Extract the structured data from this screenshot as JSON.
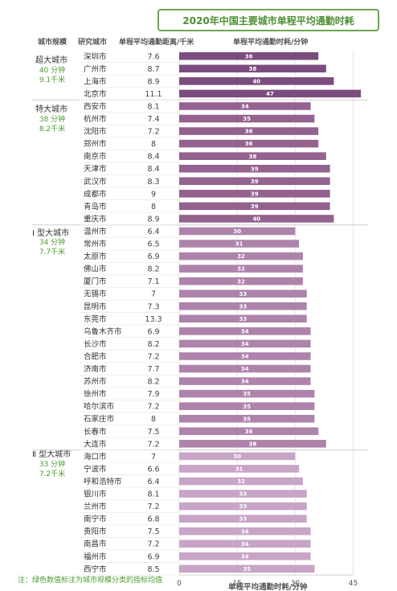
{
  "title": "2020年中国主要城市单程平均通勤时耗",
  "headers": {
    "tier": "城市规模",
    "city": "研究城市",
    "distance": "单程平均通勤距离/千米",
    "time": "单程平均通勤时耗/分钟"
  },
  "tiers": [
    {
      "name": "超大城市",
      "stat1": "40 分钟",
      "stat2": "9.1千米"
    },
    {
      "name": "特大城市",
      "stat1": "38 分钟",
      "stat2": "8.2千米"
    },
    {
      "name": "Ⅰ 型大城市",
      "stat1": "34 分钟",
      "stat2": "7.7千米"
    },
    {
      "name": "Ⅱ 型大城市",
      "stat1": "33 分钟",
      "stat2": "7.2千米"
    }
  ],
  "footnote": "注：绿色数值标注为城市规模分类的指标均值",
  "colors": {
    "tier1": "#7b4c7e",
    "tier2": "#94628f",
    "tier3": "#ae83ab",
    "tier4": "#c8a4c6",
    "accent_green": "#4e9a2e"
  },
  "chart_data": {
    "type": "bar",
    "orientation": "horizontal",
    "title": "2020年中国主要城市单程平均通勤时耗",
    "xlabel": "单程平均通勤时耗/分钟",
    "xlim": [
      0,
      45
    ],
    "xticks": [
      0,
      15,
      30,
      45
    ],
    "grid": true,
    "rows": [
      {
        "tier": 0,
        "city": "深圳市",
        "distance": "7.6",
        "time": 36
      },
      {
        "tier": 0,
        "city": "广州市",
        "distance": "8.7",
        "time": 38
      },
      {
        "tier": 0,
        "city": "上海市",
        "distance": "8.9",
        "time": 40
      },
      {
        "tier": 0,
        "city": "北京市",
        "distance": "11.1",
        "time": 47
      },
      {
        "tier": 1,
        "city": "西安市",
        "distance": "8.1",
        "time": 34
      },
      {
        "tier": 1,
        "city": "杭州市",
        "distance": "7.4",
        "time": 35
      },
      {
        "tier": 1,
        "city": "沈阳市",
        "distance": "7.2",
        "time": 36
      },
      {
        "tier": 1,
        "city": "郑州市",
        "distance": "8",
        "time": 36
      },
      {
        "tier": 1,
        "city": "南京市",
        "distance": "8.4",
        "time": 38
      },
      {
        "tier": 1,
        "city": "天津市",
        "distance": "8.4",
        "time": 39
      },
      {
        "tier": 1,
        "city": "武汉市",
        "distance": "8.3",
        "time": 39
      },
      {
        "tier": 1,
        "city": "成都市",
        "distance": "9",
        "time": 39
      },
      {
        "tier": 1,
        "city": "青岛市",
        "distance": "8",
        "time": 39
      },
      {
        "tier": 1,
        "city": "重庆市",
        "distance": "8.9",
        "time": 40
      },
      {
        "tier": 2,
        "city": "温州市",
        "distance": "6.4",
        "time": 30
      },
      {
        "tier": 2,
        "city": "常州市",
        "distance": "6.5",
        "time": 31
      },
      {
        "tier": 2,
        "city": "太原市",
        "distance": "6.9",
        "time": 32
      },
      {
        "tier": 2,
        "city": "佛山市",
        "distance": "8.2",
        "time": 32
      },
      {
        "tier": 2,
        "city": "厦门市",
        "distance": "7.1",
        "time": 32
      },
      {
        "tier": 2,
        "city": "无锡市",
        "distance": "7",
        "time": 33
      },
      {
        "tier": 2,
        "city": "昆明市",
        "distance": "7.3",
        "time": 33
      },
      {
        "tier": 2,
        "city": "东莞市",
        "distance": "13.3",
        "time": 33
      },
      {
        "tier": 2,
        "city": "乌鲁木齐市",
        "distance": "6.9",
        "time": 34
      },
      {
        "tier": 2,
        "city": "长沙市",
        "distance": "8.2",
        "time": 34
      },
      {
        "tier": 2,
        "city": "合肥市",
        "distance": "7.2",
        "time": 34
      },
      {
        "tier": 2,
        "city": "济南市",
        "distance": "7.7",
        "time": 34
      },
      {
        "tier": 2,
        "city": "苏州市",
        "distance": "8.2",
        "time": 34
      },
      {
        "tier": 2,
        "city": "徐州市",
        "distance": "7.9",
        "time": 35
      },
      {
        "tier": 2,
        "city": "哈尔滨市",
        "distance": "7.2",
        "time": 35
      },
      {
        "tier": 2,
        "city": "石家庄市",
        "distance": "8",
        "time": 35
      },
      {
        "tier": 2,
        "city": "长春市",
        "distance": "7.5",
        "time": 36
      },
      {
        "tier": 2,
        "city": "大连市",
        "distance": "7.2",
        "time": 38
      },
      {
        "tier": 3,
        "city": "海口市",
        "distance": "7",
        "time": 30
      },
      {
        "tier": 3,
        "city": "宁波市",
        "distance": "6.6",
        "time": 31
      },
      {
        "tier": 3,
        "city": "呼和浩特市",
        "distance": "6.4",
        "time": 32
      },
      {
        "tier": 3,
        "city": "银川市",
        "distance": "8.1",
        "time": 33
      },
      {
        "tier": 3,
        "city": "兰州市",
        "distance": "7.2",
        "time": 33
      },
      {
        "tier": 3,
        "city": "南宁市",
        "distance": "6.8",
        "time": 33
      },
      {
        "tier": 3,
        "city": "贵阳市",
        "distance": "7.5",
        "time": 34
      },
      {
        "tier": 3,
        "city": "南昌市",
        "distance": "7.2",
        "time": 34
      },
      {
        "tier": 3,
        "city": "福州市",
        "distance": "6.9",
        "time": 34
      },
      {
        "tier": 3,
        "city": "西宁市",
        "distance": "8.5",
        "time": 35
      }
    ]
  }
}
